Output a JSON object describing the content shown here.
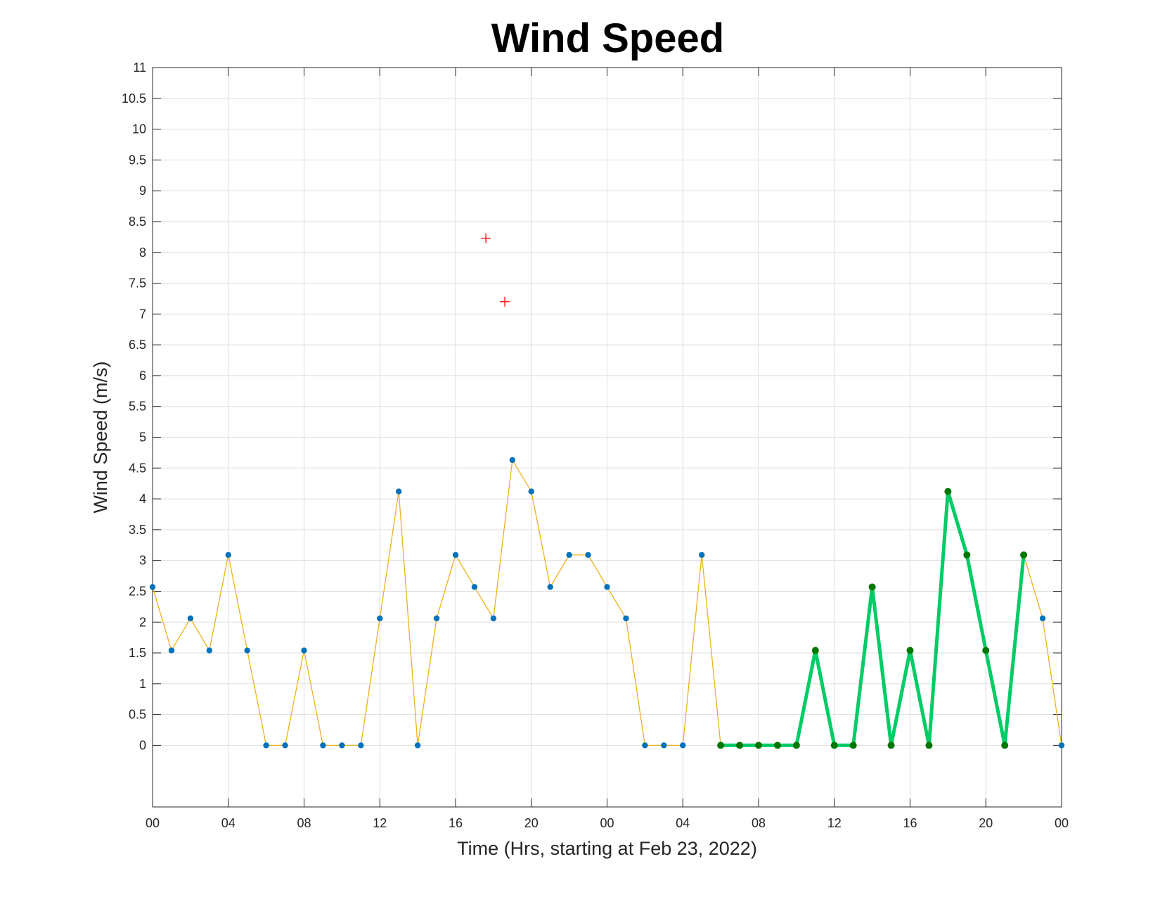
{
  "chart_data": {
    "type": "line",
    "title": "Wind Speed",
    "xlabel": "Time (Hrs, starting at Feb 23, 2022)",
    "ylabel": "Wind Speed (m/s)",
    "x_unit": "hours",
    "xlim": [
      0,
      48
    ],
    "ylim": [
      -1,
      11
    ],
    "y_ticks": [
      0,
      0.5,
      1,
      1.5,
      2,
      2.5,
      3,
      3.5,
      4,
      4.5,
      5,
      5.5,
      6,
      6.5,
      7,
      7.5,
      8,
      8.5,
      9,
      9.5,
      10,
      10.5,
      11
    ],
    "x_ticks": [
      {
        "x": 0,
        "label": "00"
      },
      {
        "x": 4,
        "label": "04"
      },
      {
        "x": 8,
        "label": "08"
      },
      {
        "x": 12,
        "label": "12"
      },
      {
        "x": 16,
        "label": "16"
      },
      {
        "x": 20,
        "label": "20"
      },
      {
        "x": 24,
        "label": "00"
      },
      {
        "x": 28,
        "label": "04"
      },
      {
        "x": 32,
        "label": "08"
      },
      {
        "x": 36,
        "label": "12"
      },
      {
        "x": 40,
        "label": "16"
      },
      {
        "x": 44,
        "label": "20"
      },
      {
        "x": 48,
        "label": "00"
      }
    ],
    "grid": true,
    "series": [
      {
        "style": "observed",
        "color": "#EDB120",
        "marker_color": "#0072BD",
        "x": [
          0,
          1,
          2,
          3,
          4,
          5,
          6,
          7,
          8,
          9,
          10,
          11,
          12,
          13,
          14,
          15,
          16,
          17,
          18,
          19,
          20,
          21,
          22,
          23,
          24,
          25,
          26,
          27,
          28,
          29,
          30,
          31,
          32,
          33,
          34,
          35,
          36,
          37,
          38,
          39,
          40,
          41,
          42,
          43,
          44,
          45,
          46,
          47,
          48
        ],
        "values": [
          2.57,
          1.54,
          2.06,
          1.54,
          3.09,
          1.54,
          0,
          0,
          1.54,
          0,
          0,
          0,
          2.06,
          4.12,
          0,
          2.06,
          3.09,
          2.57,
          2.06,
          4.63,
          4.12,
          2.57,
          3.09,
          3.09,
          2.57,
          2.06,
          0,
          0,
          0,
          3.09,
          0,
          0,
          0,
          0,
          0,
          1.54,
          0,
          0,
          2.57,
          0,
          1.54,
          0,
          4.12,
          3.09,
          1.54,
          0,
          3.09,
          2.06,
          0
        ]
      },
      {
        "style": "highlighted",
        "color": "#00CC66",
        "marker_color": "#007700",
        "x": [
          30,
          31,
          32,
          33,
          34,
          35,
          36,
          37,
          38,
          39,
          40,
          41,
          42,
          43,
          44,
          45,
          46
        ],
        "values": [
          0,
          0,
          0,
          0,
          0,
          1.54,
          0,
          0,
          2.57,
          0,
          1.54,
          0,
          4.12,
          3.09,
          1.54,
          0,
          3.09
        ]
      },
      {
        "style": "plus-markers",
        "color": "#FF0000",
        "x": [
          17.6,
          18.6
        ],
        "values": [
          8.23,
          7.2
        ]
      }
    ]
  }
}
